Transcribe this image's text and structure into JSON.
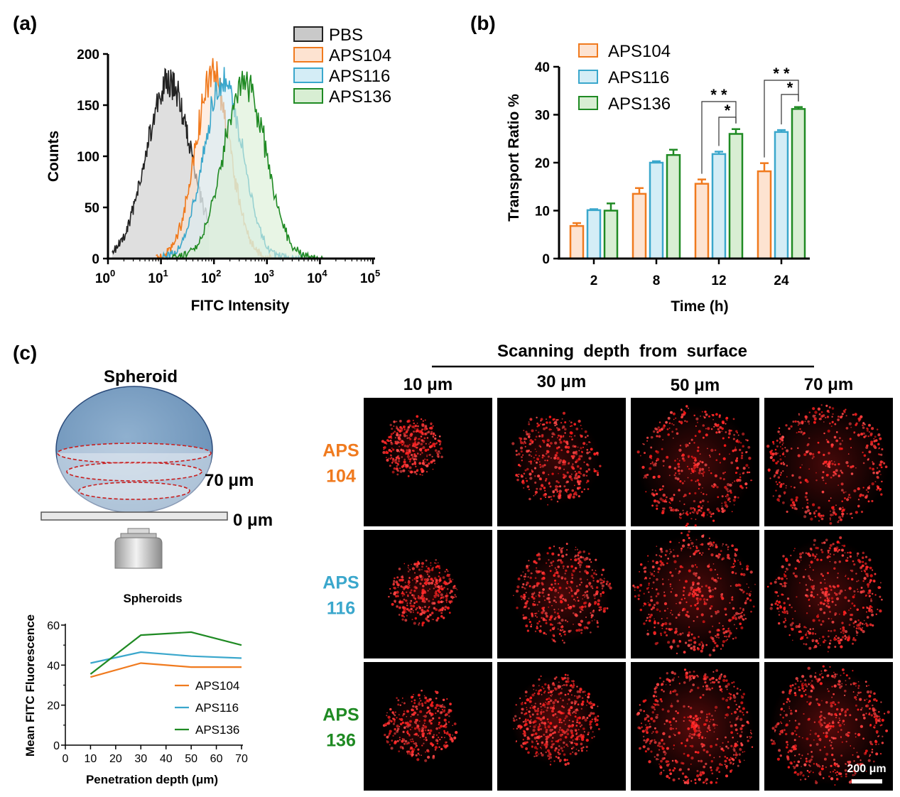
{
  "panels": {
    "a_label": "(a)",
    "b_label": "(b)",
    "c_label": "(c)"
  },
  "colors": {
    "PBS": "#222222",
    "PBS_fill": "#c9c9c9",
    "APS104": "#f07a1e",
    "APS104_fill": "#fde3d1",
    "APS116": "#3aa7cc",
    "APS116_fill": "#d4edf6",
    "APS136": "#1f8a23",
    "APS136_fill": "#d8eed3"
  },
  "chart_data": [
    {
      "id": "a",
      "type": "area",
      "xlabel": "FITC Intensity",
      "ylabel": "Counts",
      "xscale": "log",
      "xlim": [
        1,
        100000
      ],
      "ylim": [
        0,
        200
      ],
      "yticks": [
        0,
        50,
        100,
        150,
        200
      ],
      "xtick_base": "10",
      "xtick_exponents": [
        "0",
        "1",
        "2",
        "3",
        "4",
        "5"
      ],
      "legend_position": "top-right",
      "series": [
        {
          "name": "PBS",
          "peak_x": 14,
          "peak_y": 190,
          "sigma_log": 0.42,
          "x_min": 1.2,
          "x_max": 80
        },
        {
          "name": "APS104",
          "peak_x": 95,
          "peak_y": 195,
          "sigma_log": 0.33,
          "x_min": 8,
          "x_max": 1200
        },
        {
          "name": "APS116",
          "peak_x": 150,
          "peak_y": 192,
          "sigma_log": 0.36,
          "x_min": 10,
          "x_max": 6000
        },
        {
          "name": "APS136",
          "peak_x": 380,
          "peak_y": 190,
          "sigma_log": 0.4,
          "x_min": 15,
          "x_max": 15000
        }
      ]
    },
    {
      "id": "b",
      "type": "bar",
      "xlabel": "Time (h)",
      "ylabel": "Transport Ratio %",
      "categories": [
        "2",
        "8",
        "12",
        "24"
      ],
      "ylim": [
        0,
        40
      ],
      "yticks": [
        0,
        10,
        20,
        30,
        40
      ],
      "legend_position": "top-left",
      "series": [
        {
          "name": "APS104",
          "values": [
            6.8,
            13.5,
            15.6,
            18.2
          ],
          "errors": [
            0.6,
            1.2,
            0.9,
            1.7
          ]
        },
        {
          "name": "APS116",
          "values": [
            10.1,
            20.0,
            21.8,
            26.4
          ],
          "errors": [
            0.2,
            0.3,
            0.5,
            0.4
          ]
        },
        {
          "name": "APS136",
          "values": [
            10.0,
            21.6,
            26.0,
            31.2
          ],
          "errors": [
            1.5,
            1.1,
            1.0,
            0.4
          ]
        }
      ],
      "significance": [
        {
          "category": "12",
          "pair": [
            "APS104",
            "APS136"
          ],
          "label": "* *"
        },
        {
          "category": "12",
          "pair": [
            "APS116",
            "APS136"
          ],
          "label": "*"
        },
        {
          "category": "24",
          "pair": [
            "APS104",
            "APS136"
          ],
          "label": "* *"
        },
        {
          "category": "24",
          "pair": [
            "APS116",
            "APS136"
          ],
          "label": "*"
        }
      ]
    },
    {
      "id": "c_line",
      "type": "line",
      "title": "Spheroids",
      "xlabel": "Penetration depth (μm)",
      "ylabel": "Mean FITC Fluorescence",
      "x": [
        10,
        30,
        50,
        70
      ],
      "xlim": [
        0,
        70
      ],
      "xticks": [
        0,
        10,
        20,
        30,
        40,
        50,
        60,
        70
      ],
      "ylim": [
        0,
        60
      ],
      "yticks": [
        0,
        20,
        40,
        60
      ],
      "legend_position": "bottom-right",
      "series": [
        {
          "name": "APS104",
          "values": [
            34,
            41,
            39,
            39
          ]
        },
        {
          "name": "APS116",
          "values": [
            41,
            46.5,
            44.5,
            43.5
          ]
        },
        {
          "name": "APS136",
          "values": [
            35.5,
            55,
            56.5,
            50
          ]
        }
      ]
    }
  ],
  "schematic": {
    "title": "Spheroid",
    "depth_top": "70 μm",
    "depth_bottom": "0 μm"
  },
  "microscopy": {
    "header": "Scanning  depth  from  surface",
    "depths": [
      "10 μm",
      "30 μm",
      "50 μm",
      "70 μm"
    ],
    "rows": [
      {
        "line1": "APS",
        "line2": "104",
        "series": "APS104",
        "intensity": [
          0.55,
          0.65,
          0.8,
          0.8
        ]
      },
      {
        "line1": "APS",
        "line2": "116",
        "series": "APS116",
        "intensity": [
          0.6,
          0.8,
          0.9,
          0.85
        ]
      },
      {
        "line1": "APS",
        "line2": "136",
        "series": "APS136",
        "intensity": [
          0.5,
          0.95,
          1.0,
          0.95
        ]
      }
    ],
    "scale_bar": "200 μm"
  }
}
